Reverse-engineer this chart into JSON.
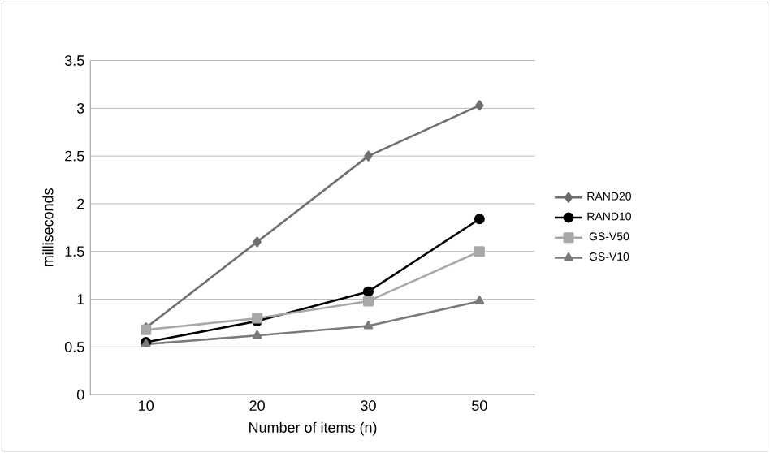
{
  "chart_data": {
    "type": "line",
    "xlabel": "Number of items (n)",
    "ylabel": "milliseconds",
    "categories": [
      "10",
      "20",
      "30",
      "50"
    ],
    "series": [
      {
        "name": "RAND20",
        "color": "#6e6e6e",
        "marker": "diamond",
        "values": [
          0.7,
          1.6,
          2.5,
          3.03
        ]
      },
      {
        "name": "RAND10",
        "color": "#000000",
        "marker": "circle",
        "values": [
          0.55,
          0.77,
          1.08,
          1.84
        ]
      },
      {
        "name": "GS-V50",
        "color": "#a8a8a8",
        "marker": "square",
        "values": [
          0.68,
          0.8,
          0.98,
          1.5
        ]
      },
      {
        "name": "GS-V10",
        "color": "#7a7a7a",
        "marker": "triangle",
        "values": [
          0.53,
          0.62,
          0.72,
          0.98
        ]
      }
    ],
    "ylim": [
      0,
      3.5
    ],
    "yticks": [
      0,
      0.5,
      1,
      1.5,
      2,
      2.5,
      3,
      3.5
    ],
    "grid": "y",
    "legend": "right",
    "line_style": "solid"
  }
}
